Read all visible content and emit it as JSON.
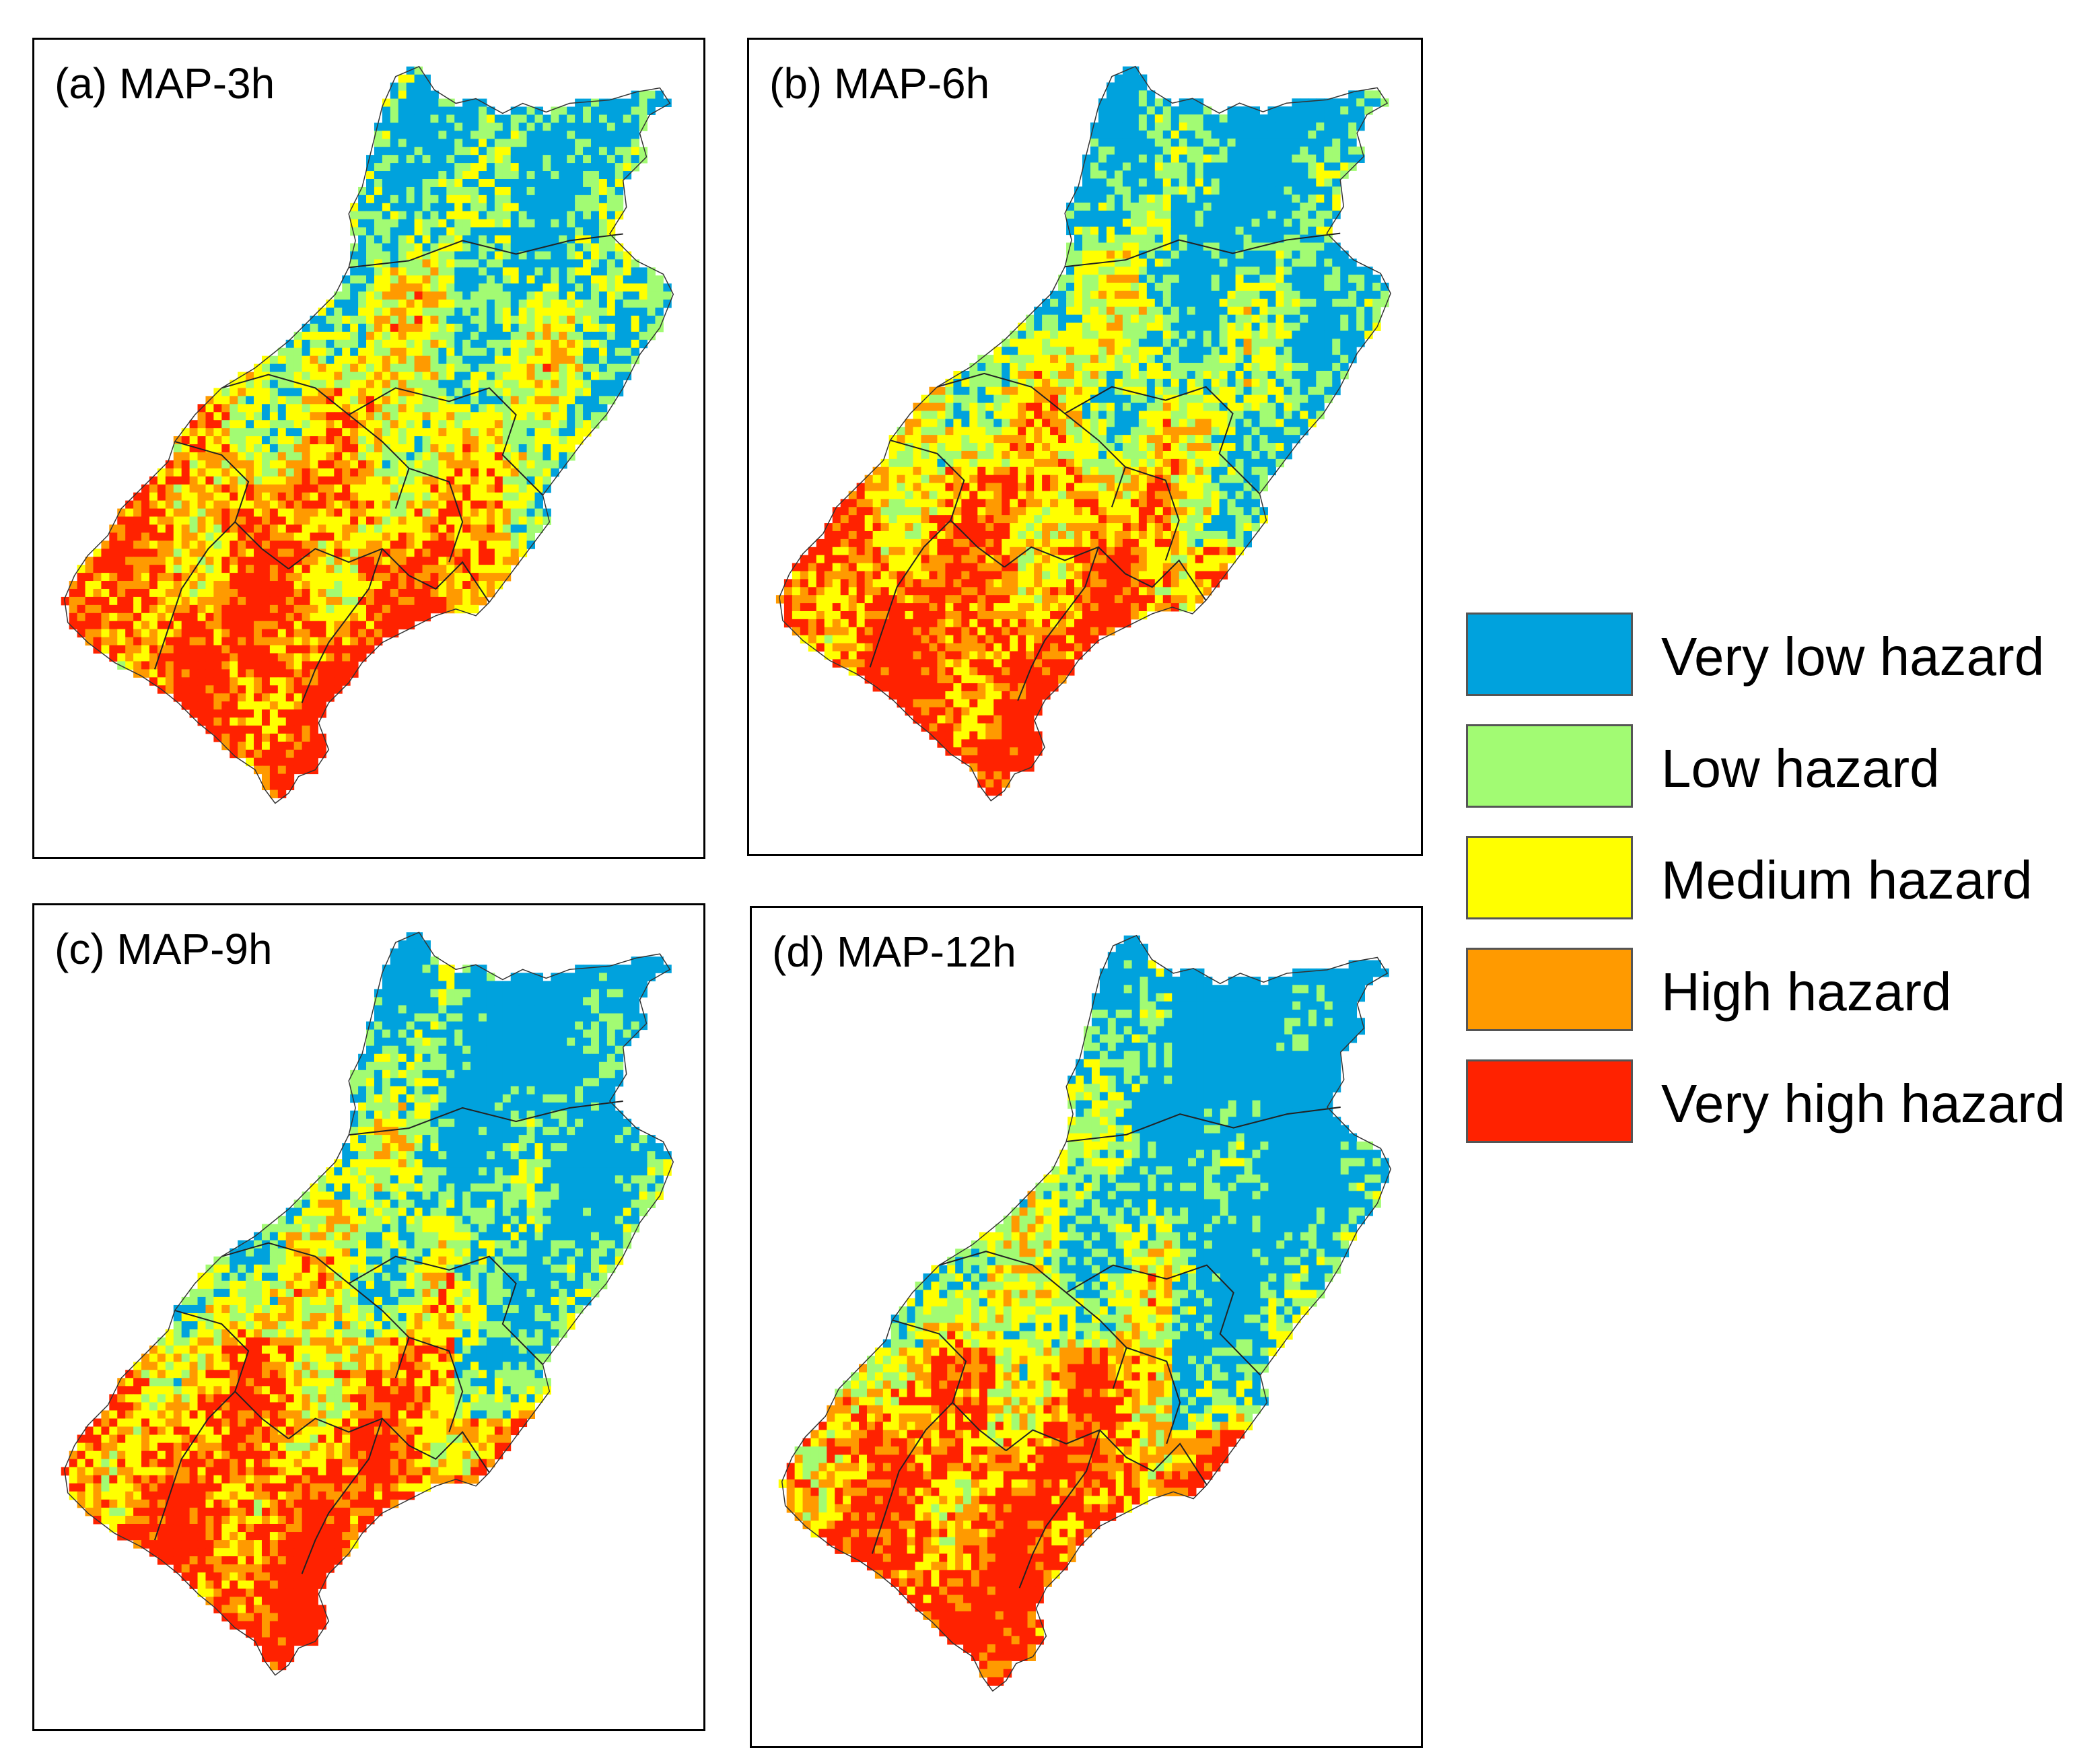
{
  "panels": [
    {
      "id": "a",
      "title": "(a) MAP-3h"
    },
    {
      "id": "b",
      "title": "(b) MAP-6h"
    },
    {
      "id": "c",
      "title": "(c) MAP-9h"
    },
    {
      "id": "d",
      "title": "(d) MAP-12h"
    }
  ],
  "legend": [
    {
      "label": "Very low hazard",
      "color": "#00a2dd"
    },
    {
      "label": "Low hazard",
      "color": "#a2fb73"
    },
    {
      "label": "Medium hazard",
      "color": "#ffff00"
    },
    {
      "label": "High hazard",
      "color": "#ff9a00"
    },
    {
      "label": "Very high hazard",
      "color": "#ff2200"
    }
  ]
}
